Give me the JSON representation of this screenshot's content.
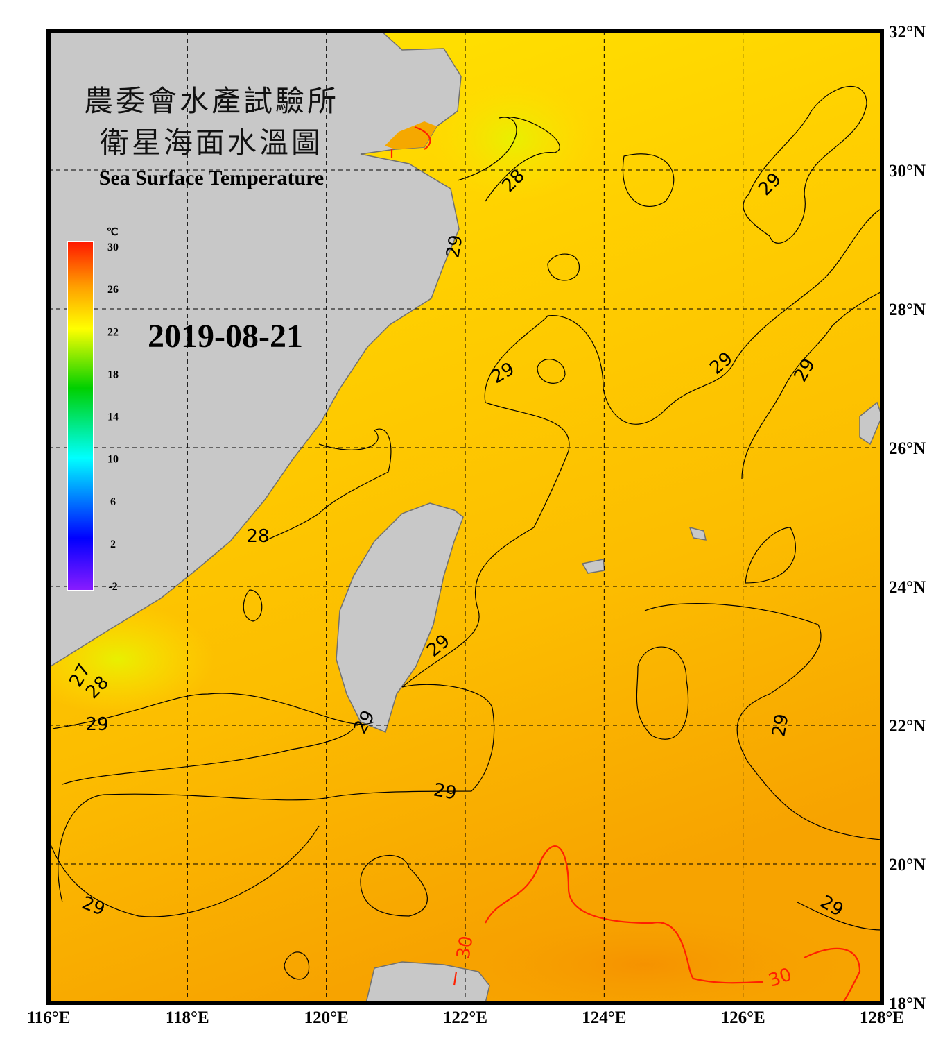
{
  "header": {
    "title_zh_1": "農委會水產試驗所",
    "title_zh_2": "衛星海面水溫圖",
    "title_en": "Sea Surface Temperature",
    "date": "2019-08-21"
  },
  "colorbar": {
    "unit": "℃",
    "ticks": [
      30,
      26,
      22,
      18,
      14,
      10,
      6,
      2,
      -2
    ]
  },
  "lat_labels": [
    "32°N",
    "30°N",
    "28°N",
    "26°N",
    "24°N",
    "22°N",
    "20°N",
    "18°N"
  ],
  "lon_labels": [
    "116°E",
    "118°E",
    "120°E",
    "122°E",
    "124°E",
    "126°E",
    "128°E"
  ],
  "contour_labels": [
    {
      "value": 28,
      "color": "#000000"
    },
    {
      "value": 29,
      "color": "#000000"
    },
    {
      "value": 29,
      "color": "#000000"
    },
    {
      "value": 29,
      "color": "#000000"
    },
    {
      "value": 29,
      "color": "#000000"
    },
    {
      "value": 29,
      "color": "#000000"
    },
    {
      "value": 28,
      "color": "#000000"
    },
    {
      "value": 29,
      "color": "#000000"
    },
    {
      "value": 27,
      "color": "#000000"
    },
    {
      "value": 28,
      "color": "#000000"
    },
    {
      "value": 29,
      "color": "#000000"
    },
    {
      "value": 29,
      "color": "#000000"
    },
    {
      "value": 29,
      "color": "#000000"
    },
    {
      "value": 29,
      "color": "#000000"
    },
    {
      "value": 29,
      "color": "#000000"
    },
    {
      "value": 29,
      "color": "#000000"
    },
    {
      "value": 30,
      "color": "#ff2000"
    },
    {
      "value": 30,
      "color": "#ff2000"
    }
  ]
}
